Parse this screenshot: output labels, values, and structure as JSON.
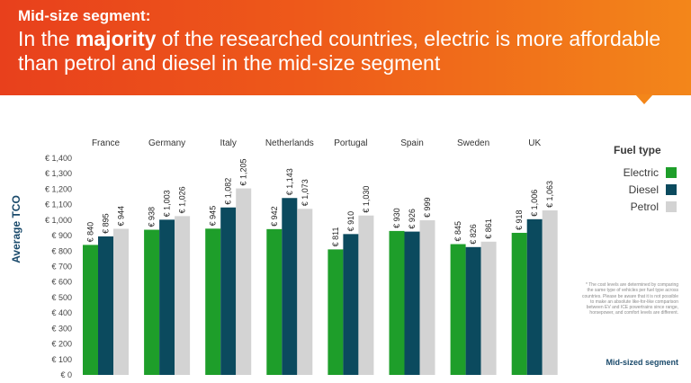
{
  "header": {
    "subtitle": "Mid-size segment:",
    "title_pre": "In the ",
    "title_bold": "majority",
    "title_post": " of the researched countries, electric is more affordable than petrol and diesel in the mid-size segment"
  },
  "chart_data": {
    "type": "bar",
    "ylabel": "Average TCO",
    "ylim": [
      0,
      1400
    ],
    "yticks": [
      0,
      100,
      200,
      300,
      400,
      500,
      600,
      700,
      800,
      900,
      1000,
      1100,
      1200,
      1300,
      1400
    ],
    "ytick_labels": [
      "€ 0",
      "€ 100",
      "€ 200",
      "€ 300",
      "€ 400",
      "€ 500",
      "€ 600",
      "€ 700",
      "€ 800",
      "€ 900",
      "€ 1,000",
      "€ 1,100",
      "€ 1,200",
      "€ 1,300",
      "€ 1,400"
    ],
    "categories": [
      "France",
      "Germany",
      "Italy",
      "Netherlands",
      "Portugal",
      "Spain",
      "Sweden",
      "UK"
    ],
    "series": [
      {
        "name": "Electric",
        "color": "#1e9e2a",
        "values": [
          840,
          938,
          945,
          942,
          811,
          930,
          845,
          918
        ],
        "labels": [
          "€ 840",
          "€ 938",
          "€ 945",
          "€ 942",
          "€ 811",
          "€ 930",
          "€ 845",
          "€ 918"
        ]
      },
      {
        "name": "Diesel",
        "color": "#0b4a5e",
        "values": [
          895,
          1003,
          1082,
          1143,
          910,
          926,
          826,
          1006
        ],
        "labels": [
          "€ 895",
          "€ 1,003",
          "€ 1,082",
          "€ 1,143",
          "€ 910",
          "€ 926",
          "€ 826",
          "€ 1,006"
        ]
      },
      {
        "name": "Petrol",
        "color": "#d3d3d3",
        "values": [
          944,
          1026,
          1205,
          1073,
          1030,
          999,
          861,
          1063
        ],
        "labels": [
          "€ 944",
          "€ 1,026",
          "€ 1,205",
          "€ 1,073",
          "€ 1,030",
          "€ 999",
          "€ 861",
          "€ 1,063"
        ]
      }
    ],
    "legend_title": "Fuel type",
    "legend_position": "right"
  },
  "footnote": "* The cost levels are determined by comparing the same type of vehicles per fuel type across countries. Please be aware that it is not possible to make an absolute like-for-like comparison between EV and ICE powertrains since range, horsepower, and comfort levels are different.",
  "segment_label": "Mid-sized segment"
}
